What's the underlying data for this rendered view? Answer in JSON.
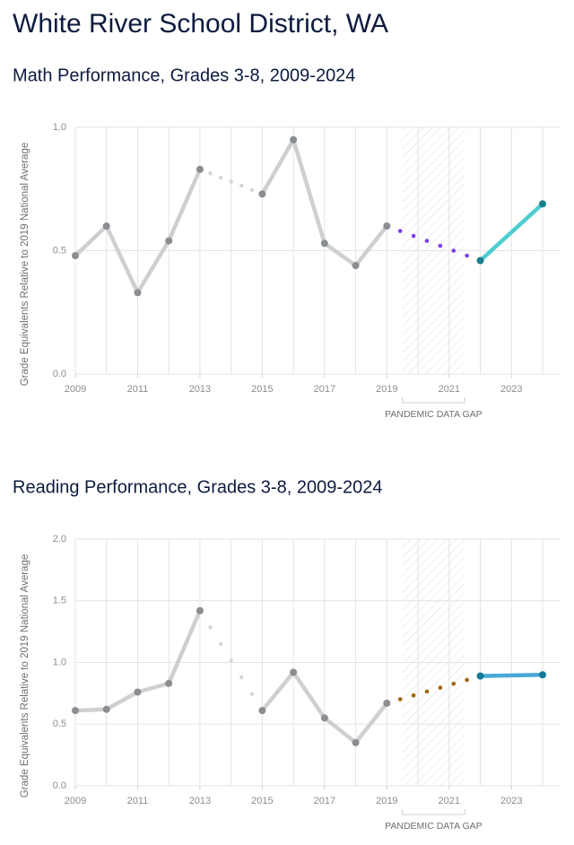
{
  "title": "White River School District, WA",
  "chart_data": [
    {
      "type": "line",
      "title": "Math Performance, Grades 3-8, 2009-2024",
      "ylabel": "Grade Equivalents Relative to 2019 National Average",
      "annotation": "PANDEMIC DATA GAP",
      "xlim": [
        2009,
        2024
      ],
      "xticks": [
        2009,
        2011,
        2013,
        2015,
        2017,
        2019,
        2021,
        2023
      ],
      "ylim": [
        0,
        1
      ],
      "yticks": [
        {
          "value": 0,
          "label": "0.0"
        },
        {
          "value": 0.5,
          "label": "0.5"
        },
        {
          "value": 1,
          "label": "1.0"
        }
      ],
      "grid": true,
      "gap_color": "#7b3fe4",
      "series": [
        {
          "color": "#cfcfcf",
          "point_color": "#8a8d91",
          "x": [
            2009,
            2010,
            2011,
            2012,
            2013,
            2014,
            2015,
            2016,
            2017,
            2018,
            2019
          ],
          "values": [
            0.48,
            0.6,
            0.33,
            0.54,
            0.83,
            null,
            0.73,
            0.95,
            0.53,
            0.44,
            0.6
          ]
        },
        {
          "color": "#4ecdd0",
          "point_color": "#1a7f8a",
          "x": [
            2022,
            2024
          ],
          "values": [
            0.46,
            0.69
          ]
        }
      ]
    },
    {
      "type": "line",
      "title": "Reading Performance, Grades 3-8, 2009-2024",
      "ylabel": "Grade Equivalents Relative to 2019 National Average",
      "annotation": "PANDEMIC DATA GAP",
      "xlim": [
        2009,
        2024
      ],
      "xticks": [
        2009,
        2011,
        2013,
        2015,
        2017,
        2019,
        2021,
        2023
      ],
      "ylim": [
        0,
        2
      ],
      "yticks": [
        {
          "value": 0,
          "label": "0.0"
        },
        {
          "value": 0.5,
          "label": "0.5"
        },
        {
          "value": 1,
          "label": "1.0"
        },
        {
          "value": 1.5,
          "label": "1.5"
        },
        {
          "value": 2,
          "label": "2.0"
        }
      ],
      "grid": true,
      "gap_color": "#a0640a",
      "series": [
        {
          "color": "#cfcfcf",
          "point_color": "#8a8d91",
          "x": [
            2009,
            2010,
            2011,
            2012,
            2013,
            2014,
            2015,
            2016,
            2017,
            2018,
            2019
          ],
          "values": [
            0.61,
            0.62,
            0.76,
            0.83,
            1.42,
            null,
            0.61,
            0.92,
            0.55,
            0.35,
            0.67
          ]
        },
        {
          "color": "#4aa8d8",
          "point_color": "#137a9a",
          "x": [
            2022,
            2024
          ],
          "values": [
            0.89,
            0.9
          ]
        }
      ]
    }
  ]
}
